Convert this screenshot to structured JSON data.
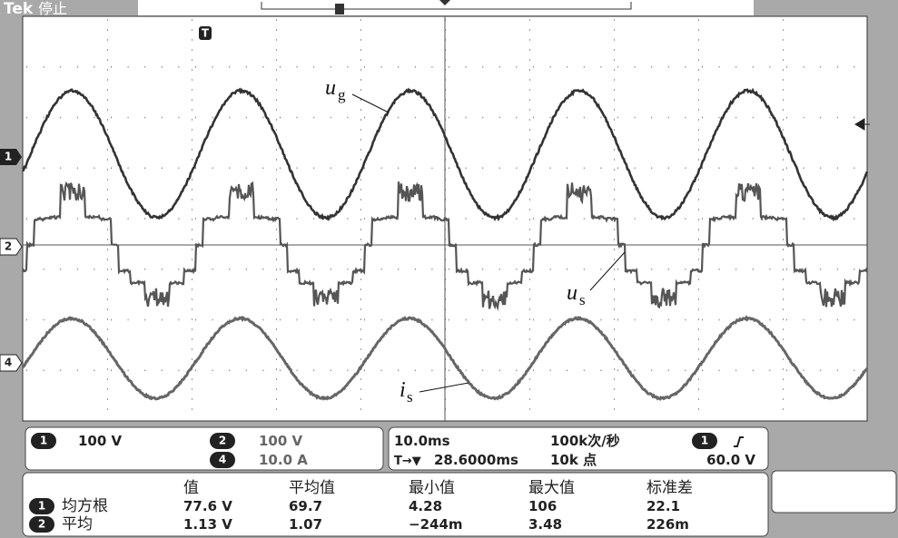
{
  "header": {
    "brand": "Tek",
    "status": "停止"
  },
  "markers": {
    "trigger": "T",
    "ch1": "1",
    "ch2": "2",
    "ch4": "4"
  },
  "labels": {
    "ug": {
      "main": "u",
      "sub": "g"
    },
    "us": {
      "main": "u",
      "sub": "s"
    },
    "is": {
      "main": "i",
      "sub": "s"
    }
  },
  "channels": [
    {
      "id": "1",
      "scale": "100 V"
    },
    {
      "id": "2",
      "scale": "100 V"
    },
    {
      "id": "4",
      "scale": "10.0 A"
    }
  ],
  "timebase": {
    "scale": "10.0ms",
    "rate": "100k次/秒",
    "position": "28.6000ms",
    "position_prefix": "T→▼",
    "length": "10k 点",
    "trigger_channel": "1",
    "trigger_level": "60.0 V"
  },
  "measurements": {
    "headers": [
      "值",
      "平均值",
      "最小值",
      "最大值",
      "标准差"
    ],
    "rows": [
      {
        "id": "1",
        "name": "均方根",
        "cells": [
          "77.6 V",
          "69.7",
          "4.28",
          "106",
          "22.1"
        ]
      },
      {
        "id": "2",
        "name": "平均",
        "cells": [
          "1.13 V",
          "1.07",
          "−244m",
          "3.48",
          "226m"
        ]
      }
    ]
  }
}
